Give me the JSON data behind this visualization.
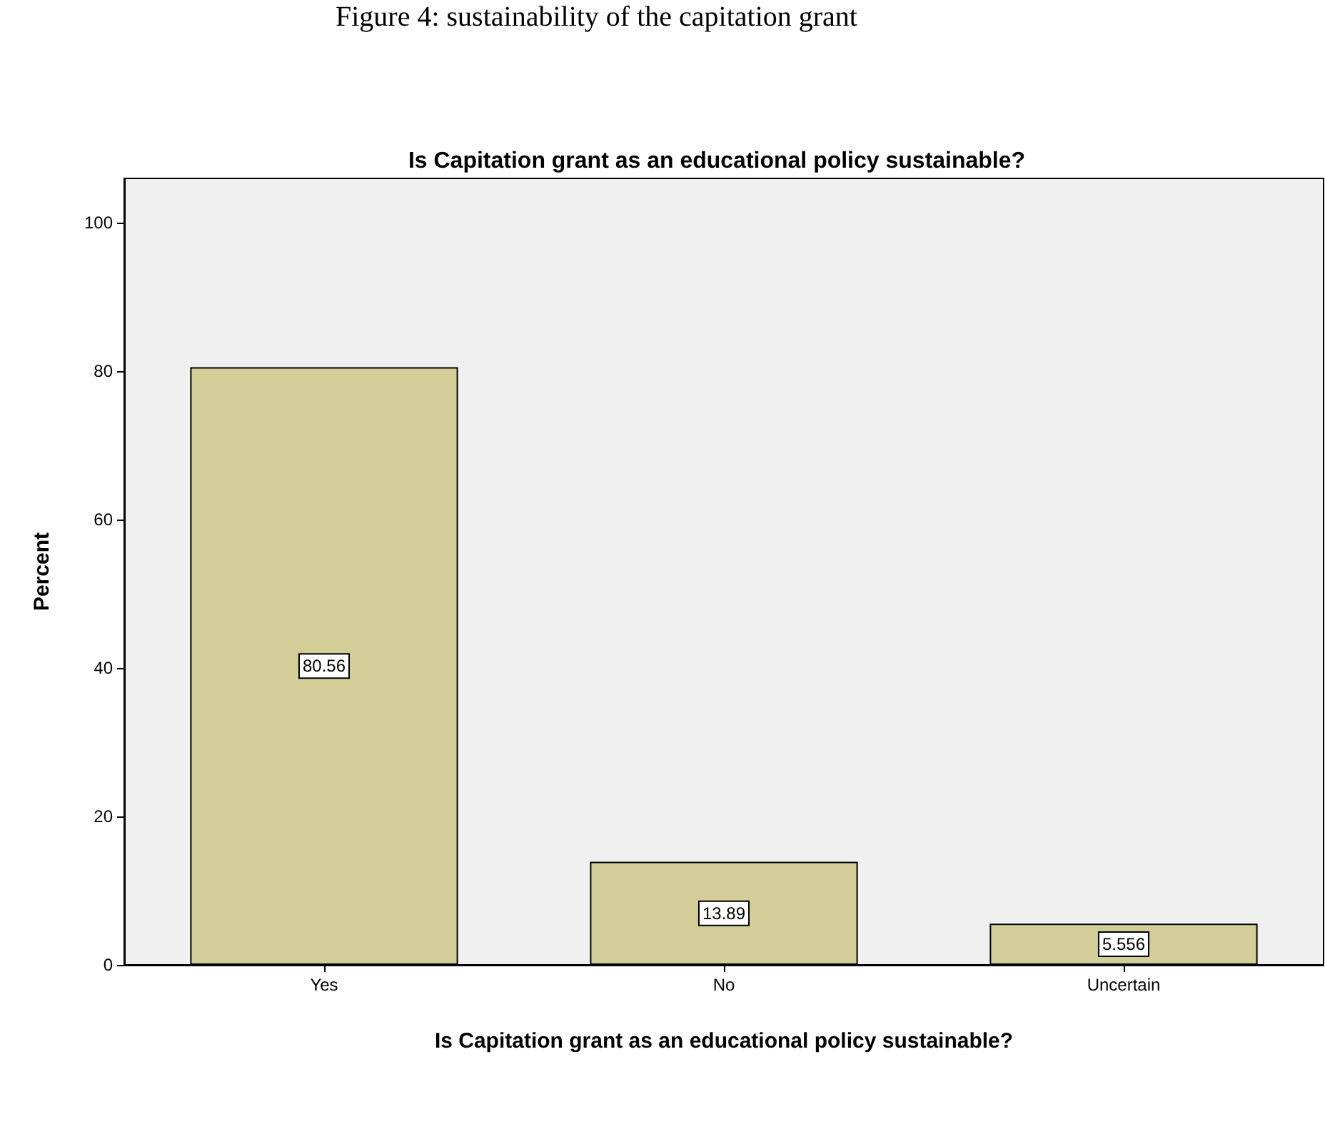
{
  "chart_data": {
    "type": "bar",
    "title": "Is Capitation grant as an educational policy sustainable?",
    "xlabel": "Is Capitation grant as an educational policy sustainable?",
    "ylabel": "Percent",
    "annotations": [
      "Figure 4: sustainability of the capitation grant"
    ],
    "categories": [
      "Yes",
      "No",
      "Uncertain"
    ],
    "values": [
      80.56,
      13.89,
      5.556
    ],
    "color": "#d3ce97",
    "ylim": [
      0,
      106
    ],
    "yticks": [
      0,
      20,
      40,
      60,
      80,
      100
    ],
    "grid": false,
    "data_labels": true
  }
}
